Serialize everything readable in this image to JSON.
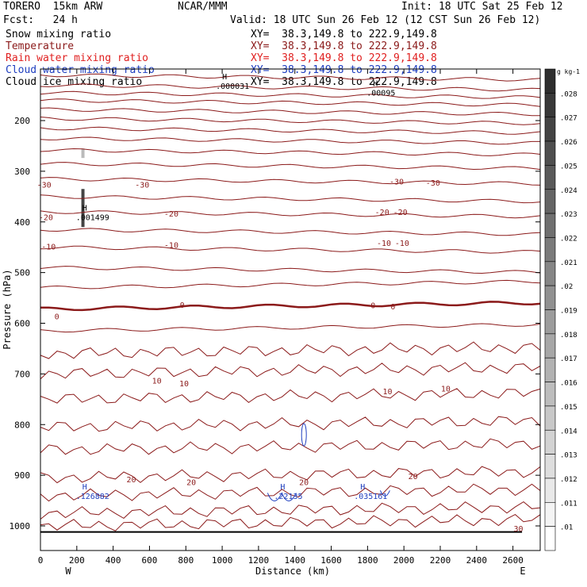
{
  "header": {
    "model": "TORERO  15km ARW",
    "org": "NCAR/MMM",
    "init": "Init: 18 UTC Sat 25 Feb 12",
    "fcst": "Fcst:   24 h",
    "valid": "Valid: 18 UTC Sun 26 Feb 12 (12 CST Sun 26 Feb 12)"
  },
  "fields": [
    {
      "name": "Snow mixing ratio",
      "xy": "XY=  38.3,149.8 to 222.9,149.8",
      "color": "#000000"
    },
    {
      "name": "Temperature",
      "xy": "XY=  38.3,149.8 to 222.9,149.8",
      "color": "#8b1a1a"
    },
    {
      "name": "Rain water mixing ratio",
      "xy": "XY=  38.3,149.8 to 222.9,149.8",
      "color": "#e02020"
    },
    {
      "name": "Cloud water mixing ratio",
      "xy": "XY=  38.3,149.8 to 222.9,149.8",
      "color": "#1f3fbf"
    },
    {
      "name": "Cloud ice mixing ratio",
      "xy": "XY=  38.3,149.8 to 222.9,149.8",
      "color": "#000000"
    }
  ],
  "chart_data": {
    "type": "contour",
    "xlabel": "Distance (km)",
    "ylabel": "Pressure (hPa)",
    "xlim": [
      0,
      2750
    ],
    "ylim": [
      1050,
      100
    ],
    "x_ticks": [
      0,
      200,
      400,
      600,
      800,
      1000,
      1200,
      1400,
      1600,
      1800,
      2000,
      2200,
      2400,
      2600
    ],
    "y_ticks": [
      200,
      300,
      400,
      500,
      600,
      700,
      800,
      900,
      1000
    ],
    "x_end_labels": {
      "left": "W",
      "right": "E"
    },
    "colorbar": {
      "unit": "g kg-1",
      "ticks": [
        ".01",
        ".011",
        ".012",
        ".013",
        ".014",
        ".015",
        ".016",
        ".017",
        ".018",
        ".019",
        ".02",
        ".021",
        ".022",
        ".023",
        ".024",
        ".025",
        ".026",
        ".027",
        ".028"
      ]
    },
    "temperature_contours": [
      {
        "level": "-30",
        "labels": [
          [
            20,
            326
          ],
          [
            560,
            326
          ],
          [
            1960,
            320
          ],
          [
            2160,
            322
          ]
        ]
      },
      {
        "level": "-20",
        "labels": [
          [
            30,
            390
          ],
          [
            720,
            383
          ],
          [
            1880,
            380
          ],
          [
            1980,
            380
          ]
        ]
      },
      {
        "level": "-10",
        "labels": [
          [
            45,
            448
          ],
          [
            720,
            445
          ],
          [
            1890,
            441
          ],
          [
            1990,
            441
          ]
        ]
      },
      {
        "level": "0",
        "labels": [
          [
            90,
            586
          ],
          [
            780,
            563
          ],
          [
            1830,
            564
          ],
          [
            1940,
            566
          ]
        ]
      },
      {
        "level": "10",
        "labels": [
          [
            640,
            713
          ],
          [
            790,
            718
          ],
          [
            1910,
            734
          ],
          [
            2230,
            728
          ]
        ]
      },
      {
        "level": "20",
        "labels": [
          [
            500,
            908
          ],
          [
            830,
            913
          ],
          [
            1450,
            913
          ],
          [
            2050,
            901
          ]
        ]
      },
      {
        "level": "30",
        "labels": [
          [
            2630,
            1005
          ]
        ]
      }
    ],
    "maxima": [
      {
        "label": "H",
        "value": ".000031",
        "x": 1000,
        "p": 128
      },
      {
        "label": "H",
        "value": ".001499",
        "x": 230,
        "p": 387
      },
      {
        "label": "H",
        "value": ".126882",
        "x": 230,
        "p": 937
      },
      {
        "label": "H",
        "value": ".22135",
        "x": 1320,
        "p": 937
      },
      {
        "label": "H",
        "value": ".035161",
        "x": 1760,
        "p": 937
      },
      {
        "label": "H",
        "value": ".00095",
        "x": 1830,
        "p": 141
      }
    ]
  }
}
